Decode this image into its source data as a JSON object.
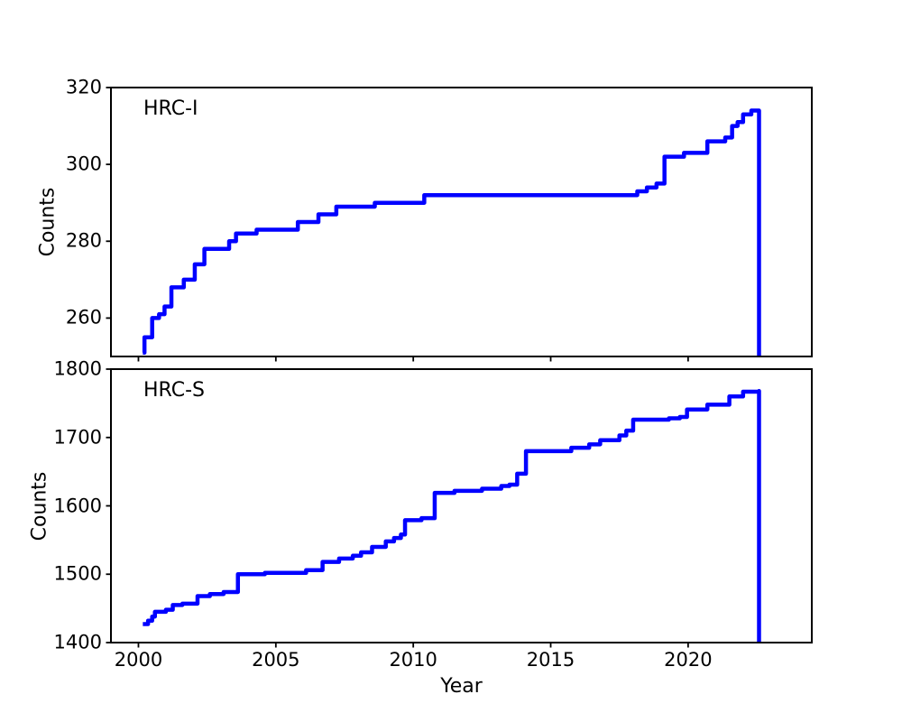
{
  "figure": {
    "background": "#ffffff",
    "line_color": "#0000ff",
    "axis_color": "#000000"
  },
  "chart_data": [
    {
      "type": "line",
      "subtype": "step-post",
      "annotation": "HRC-I",
      "ylabel": "Counts",
      "xlabel": "",
      "ylim": [
        250,
        320
      ],
      "yticks": [
        260,
        280,
        300,
        320
      ],
      "xlim": [
        1999.0,
        2024.5
      ],
      "xticks": [
        2000,
        2005,
        2010,
        2015,
        2020
      ],
      "xticklabels_visible": false,
      "grid": false,
      "points": [
        [
          2000.16,
          251
        ],
        [
          2000.22,
          255
        ],
        [
          2000.5,
          260
        ],
        [
          2000.75,
          261
        ],
        [
          2000.95,
          263
        ],
        [
          2001.2,
          268
        ],
        [
          2001.65,
          270
        ],
        [
          2002.05,
          274
        ],
        [
          2002.4,
          278
        ],
        [
          2003.3,
          280
        ],
        [
          2003.55,
          282
        ],
        [
          2004.3,
          283
        ],
        [
          2005.8,
          285
        ],
        [
          2006.55,
          287
        ],
        [
          2007.2,
          289
        ],
        [
          2008.6,
          290
        ],
        [
          2010.4,
          292
        ],
        [
          2018.15,
          293
        ],
        [
          2018.5,
          294
        ],
        [
          2018.85,
          295
        ],
        [
          2019.14,
          302
        ],
        [
          2019.85,
          303
        ],
        [
          2020.7,
          306
        ],
        [
          2021.35,
          307
        ],
        [
          2021.6,
          310
        ],
        [
          2021.8,
          311
        ],
        [
          2022.0,
          313
        ],
        [
          2022.3,
          314
        ],
        [
          2022.58,
          314
        ],
        [
          2022.58,
          250
        ]
      ]
    },
    {
      "type": "line",
      "subtype": "step-post",
      "annotation": "HRC-S",
      "ylabel": "Counts",
      "xlabel": "Year",
      "ylim": [
        1400,
        1800
      ],
      "yticks": [
        1400,
        1500,
        1600,
        1700,
        1800
      ],
      "xlim": [
        1999.0,
        2024.5
      ],
      "xticks": [
        2000,
        2005,
        2010,
        2015,
        2020
      ],
      "xticklabels_visible": true,
      "grid": false,
      "points": [
        [
          2000.16,
          1427
        ],
        [
          2000.35,
          1432
        ],
        [
          2000.5,
          1438
        ],
        [
          2000.6,
          1445
        ],
        [
          2001.0,
          1448
        ],
        [
          2001.25,
          1455
        ],
        [
          2001.6,
          1457
        ],
        [
          2002.15,
          1468
        ],
        [
          2002.6,
          1471
        ],
        [
          2003.1,
          1474
        ],
        [
          2003.62,
          1500
        ],
        [
          2004.6,
          1502
        ],
        [
          2006.1,
          1506
        ],
        [
          2006.7,
          1518
        ],
        [
          2007.3,
          1523
        ],
        [
          2007.8,
          1527
        ],
        [
          2008.1,
          1532
        ],
        [
          2008.5,
          1540
        ],
        [
          2009.0,
          1548
        ],
        [
          2009.3,
          1553
        ],
        [
          2009.55,
          1558
        ],
        [
          2009.7,
          1579
        ],
        [
          2010.3,
          1582
        ],
        [
          2010.78,
          1619
        ],
        [
          2011.5,
          1622
        ],
        [
          2012.5,
          1625
        ],
        [
          2013.2,
          1629
        ],
        [
          2013.5,
          1631
        ],
        [
          2013.78,
          1647
        ],
        [
          2014.1,
          1680
        ],
        [
          2015.75,
          1685
        ],
        [
          2016.4,
          1690
        ],
        [
          2016.8,
          1696
        ],
        [
          2017.5,
          1703
        ],
        [
          2017.75,
          1710
        ],
        [
          2018.0,
          1726
        ],
        [
          2019.3,
          1728
        ],
        [
          2019.7,
          1730
        ],
        [
          2019.96,
          1741
        ],
        [
          2020.7,
          1748
        ],
        [
          2021.5,
          1760
        ],
        [
          2022.0,
          1767
        ],
        [
          2022.58,
          1768
        ],
        [
          2022.58,
          1400
        ]
      ]
    }
  ]
}
